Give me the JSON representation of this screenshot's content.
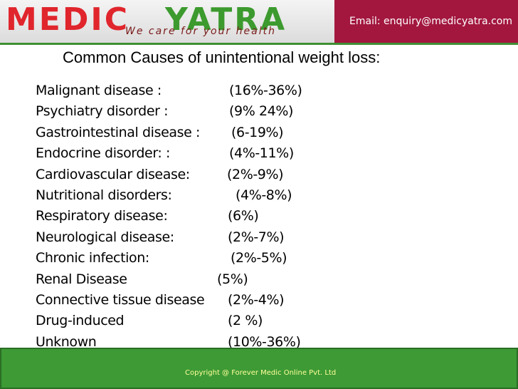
{
  "header": {
    "logo_left": "MEDIC",
    "logo_right": "YATRA",
    "tagline": "We care for your health",
    "email": "Email: enquiry@medicyatra.com"
  },
  "title": "Common Causes of unintentional weight loss:",
  "items": [
    {
      "name": "Malignant disease :",
      "range": "(16%-36%)"
    },
    {
      "name": "Psychiatry disorder :",
      "range": "(9% 24%)"
    },
    {
      "name": "Gastrointestinal disease :",
      "range": "(6-19%)"
    },
    {
      "name": "Endocrine disorder: :",
      "range": "(4%-11%)"
    },
    {
      "name": "Cardiovascular disease:",
      "range": "(2%-9%)"
    },
    {
      "name": "Nutritional disorders:",
      "range": "(4%-8%)"
    },
    {
      "name": "Respiratory disease:",
      "range": "(6%)"
    },
    {
      "name": "Neurological disease:",
      "range": "(2%-7%)"
    },
    {
      "name": "Chronic infection:",
      "range": "(2%-5%)"
    },
    {
      "name": "Renal Disease",
      "range": "(5%)"
    },
    {
      "name": "Connective tissue disease",
      "range": "(2%-4%)"
    },
    {
      "name": "Drug-induced",
      "range": "(2 %)"
    },
    {
      "name": "Unknown",
      "range": "(10%-36%)"
    }
  ],
  "footer": {
    "copyright": "Copyright @ Forever Medic Online Pvt. Ltd"
  }
}
